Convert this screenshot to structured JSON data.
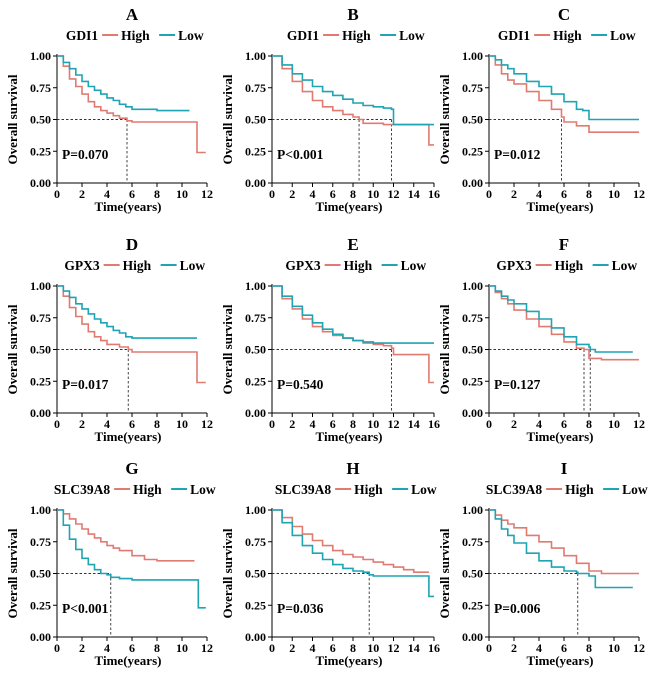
{
  "colors": {
    "high": "#E07B72",
    "low": "#1FA4B4",
    "axis": "#000000",
    "reference": "#333333"
  },
  "axis_text": {
    "xlabel": "Time(years)",
    "ylabel": "Overall survival"
  },
  "legend_text": {
    "high": "High",
    "low": "Low"
  },
  "chart_data": [
    {
      "panel": "A",
      "type": "line",
      "title": "GDI1",
      "p_value": "P=0.070",
      "xlim": [
        0,
        12
      ],
      "xticks": [
        0,
        2,
        4,
        6,
        8,
        10,
        12
      ],
      "ylim": [
        0,
        1
      ],
      "yticks": [
        "0.00",
        "0.25",
        "0.50",
        "0.75",
        "1.00"
      ],
      "median_lines": [
        5.6
      ],
      "median_end": 5.6,
      "series": [
        {
          "name": "High",
          "x": [
            0,
            0.5,
            1,
            1.5,
            2,
            2.5,
            3,
            3.5,
            4,
            4.5,
            5,
            5.6,
            6,
            8,
            10,
            11,
            11.2,
            11.9
          ],
          "y": [
            1.0,
            0.92,
            0.82,
            0.76,
            0.7,
            0.64,
            0.6,
            0.57,
            0.55,
            0.53,
            0.51,
            0.49,
            0.48,
            0.48,
            0.48,
            0.48,
            0.24,
            0.24
          ]
        },
        {
          "name": "Low",
          "x": [
            0,
            0.5,
            1,
            1.5,
            2,
            2.5,
            3,
            3.5,
            4,
            4.5,
            5,
            5.5,
            6,
            7,
            8,
            9,
            10.6
          ],
          "y": [
            1.0,
            0.95,
            0.9,
            0.85,
            0.8,
            0.76,
            0.73,
            0.7,
            0.67,
            0.65,
            0.62,
            0.6,
            0.58,
            0.58,
            0.57,
            0.57,
            0.57
          ]
        }
      ]
    },
    {
      "panel": "B",
      "type": "line",
      "title": "GDI1",
      "p_value": "P<0.001",
      "xlim": [
        0,
        16
      ],
      "xticks": [
        0,
        2,
        4,
        6,
        8,
        10,
        12,
        14,
        16
      ],
      "ylim": [
        0,
        1
      ],
      "yticks": [
        "0.00",
        "0.25",
        "0.50",
        "0.75",
        "1.00"
      ],
      "median_lines": [
        8.6,
        11.8
      ],
      "median_end": 11.8,
      "series": [
        {
          "name": "High",
          "x": [
            0,
            1,
            2,
            3,
            4,
            5,
            6,
            7,
            8,
            8.6,
            9,
            10,
            11,
            12,
            13,
            14,
            15.3,
            15.5,
            16
          ],
          "y": [
            1.0,
            0.9,
            0.8,
            0.72,
            0.65,
            0.6,
            0.57,
            0.54,
            0.52,
            0.5,
            0.47,
            0.47,
            0.46,
            0.46,
            0.46,
            0.46,
            0.46,
            0.3,
            0.3
          ]
        },
        {
          "name": "Low",
          "x": [
            0,
            1,
            2,
            3,
            4,
            5,
            6,
            7,
            8,
            9,
            10,
            11,
            11.8,
            12,
            13,
            14,
            15,
            16
          ],
          "y": [
            1.0,
            0.93,
            0.86,
            0.81,
            0.76,
            0.72,
            0.69,
            0.66,
            0.63,
            0.61,
            0.6,
            0.59,
            0.58,
            0.46,
            0.46,
            0.46,
            0.46,
            0.46
          ]
        }
      ]
    },
    {
      "panel": "C",
      "type": "line",
      "title": "GDI1",
      "p_value": "P=0.012",
      "xlim": [
        0,
        12
      ],
      "xticks": [
        0,
        2,
        4,
        6,
        8,
        10,
        12
      ],
      "ylim": [
        0,
        1
      ],
      "yticks": [
        "0.00",
        "0.25",
        "0.50",
        "0.75",
        "1.00"
      ],
      "median_lines": [
        5.8
      ],
      "median_end": 5.8,
      "series": [
        {
          "name": "High",
          "x": [
            0,
            0.5,
            1,
            1.5,
            2,
            3,
            4,
            5,
            5.8,
            6,
            7,
            8,
            9,
            10,
            11,
            12
          ],
          "y": [
            1.0,
            0.93,
            0.86,
            0.81,
            0.78,
            0.72,
            0.65,
            0.58,
            0.52,
            0.48,
            0.45,
            0.4,
            0.4,
            0.4,
            0.4,
            0.4
          ]
        },
        {
          "name": "Low",
          "x": [
            0,
            0.5,
            1,
            1.5,
            2,
            3,
            4,
            5,
            6,
            7,
            7.5,
            8,
            9,
            10,
            11,
            12
          ],
          "y": [
            1.0,
            0.97,
            0.93,
            0.9,
            0.86,
            0.8,
            0.76,
            0.7,
            0.64,
            0.58,
            0.57,
            0.5,
            0.5,
            0.5,
            0.5,
            0.5
          ]
        }
      ]
    },
    {
      "panel": "D",
      "type": "line",
      "title": "GPX3",
      "p_value": "P=0.017",
      "xlim": [
        0,
        12
      ],
      "xticks": [
        0,
        2,
        4,
        6,
        8,
        10,
        12
      ],
      "ylim": [
        0,
        1
      ],
      "yticks": [
        "0.00",
        "0.25",
        "0.50",
        "0.75",
        "1.00"
      ],
      "median_lines": [
        5.7
      ],
      "median_end": 5.7,
      "series": [
        {
          "name": "High",
          "x": [
            0,
            0.5,
            1,
            1.5,
            2,
            2.5,
            3,
            3.5,
            4,
            5,
            5.7,
            6,
            8,
            10,
            11,
            11.2,
            11.9
          ],
          "y": [
            1.0,
            0.92,
            0.83,
            0.76,
            0.7,
            0.64,
            0.6,
            0.57,
            0.54,
            0.52,
            0.5,
            0.48,
            0.48,
            0.48,
            0.48,
            0.24,
            0.24
          ]
        },
        {
          "name": "Low",
          "x": [
            0,
            0.5,
            1,
            1.5,
            2,
            2.5,
            3,
            3.5,
            4,
            4.5,
            5,
            5.5,
            6,
            8,
            10,
            11.2
          ],
          "y": [
            1.0,
            0.96,
            0.91,
            0.86,
            0.82,
            0.78,
            0.74,
            0.71,
            0.68,
            0.65,
            0.63,
            0.6,
            0.59,
            0.59,
            0.59,
            0.59
          ]
        }
      ]
    },
    {
      "panel": "E",
      "type": "line",
      "title": "GPX3",
      "p_value": "P=0.540",
      "xlim": [
        0,
        16
      ],
      "xticks": [
        0,
        2,
        4,
        6,
        8,
        10,
        12,
        14,
        16
      ],
      "ylim": [
        0,
        1
      ],
      "yticks": [
        "0.00",
        "0.25",
        "0.50",
        "0.75",
        "1.00"
      ],
      "median_lines": [
        11.8
      ],
      "median_end": 11.8,
      "series": [
        {
          "name": "High",
          "x": [
            0,
            1,
            2,
            3,
            4,
            5,
            6,
            7,
            8,
            9,
            10,
            11,
            11.8,
            12,
            14,
            15.3,
            15.5,
            16
          ],
          "y": [
            1.0,
            0.9,
            0.82,
            0.74,
            0.68,
            0.64,
            0.61,
            0.59,
            0.57,
            0.55,
            0.54,
            0.53,
            0.51,
            0.46,
            0.46,
            0.46,
            0.24,
            0.24
          ]
        },
        {
          "name": "Low",
          "x": [
            0,
            1,
            2,
            3,
            4,
            5,
            6,
            7,
            8,
            9,
            10,
            12,
            14,
            16
          ],
          "y": [
            1.0,
            0.92,
            0.84,
            0.77,
            0.71,
            0.66,
            0.62,
            0.59,
            0.57,
            0.56,
            0.55,
            0.55,
            0.55,
            0.55
          ]
        }
      ]
    },
    {
      "panel": "F",
      "type": "line",
      "title": "GPX3",
      "p_value": "P=0.127",
      "xlim": [
        0,
        12
      ],
      "xticks": [
        0,
        2,
        4,
        6,
        8,
        10,
        12
      ],
      "ylim": [
        0,
        1
      ],
      "yticks": [
        "0.00",
        "0.25",
        "0.50",
        "0.75",
        "1.00"
      ],
      "median_lines": [
        7.6,
        8.1
      ],
      "median_end": 8.1,
      "series": [
        {
          "name": "High",
          "x": [
            0,
            0.5,
            1,
            1.5,
            2,
            3,
            4,
            5,
            6,
            7,
            7.6,
            8,
            9,
            10,
            11,
            12
          ],
          "y": [
            1.0,
            0.95,
            0.9,
            0.86,
            0.81,
            0.74,
            0.68,
            0.62,
            0.56,
            0.51,
            0.5,
            0.43,
            0.42,
            0.42,
            0.42,
            0.42
          ]
        },
        {
          "name": "Low",
          "x": [
            0,
            0.5,
            1,
            1.5,
            2,
            3,
            4,
            5,
            6,
            7,
            8,
            8.1,
            8.5,
            10,
            11.5
          ],
          "y": [
            1.0,
            0.96,
            0.92,
            0.89,
            0.86,
            0.8,
            0.74,
            0.67,
            0.6,
            0.54,
            0.52,
            0.5,
            0.48,
            0.48,
            0.48
          ]
        }
      ]
    },
    {
      "panel": "G",
      "type": "line",
      "title": "SLC39A8",
      "p_value": "P<0.001",
      "xlim": [
        0,
        12
      ],
      "xticks": [
        0,
        2,
        4,
        6,
        8,
        10,
        12
      ],
      "ylim": [
        0,
        1
      ],
      "yticks": [
        "0.00",
        "0.25",
        "0.50",
        "0.75",
        "1.00"
      ],
      "median_lines": [
        4.3
      ],
      "median_end": 4.3,
      "series": [
        {
          "name": "High",
          "x": [
            0,
            0.5,
            1,
            1.5,
            2,
            2.5,
            3,
            3.5,
            4,
            4.5,
            5,
            6,
            7,
            8,
            9,
            10,
            11
          ],
          "y": [
            1.0,
            0.97,
            0.93,
            0.89,
            0.85,
            0.81,
            0.78,
            0.75,
            0.72,
            0.7,
            0.68,
            0.64,
            0.61,
            0.6,
            0.6,
            0.6,
            0.6
          ]
        },
        {
          "name": "Low",
          "x": [
            0,
            0.5,
            1,
            1.5,
            2,
            2.5,
            3,
            3.5,
            4,
            4.3,
            5,
            6,
            8,
            10,
            11.2,
            11.3,
            11.9
          ],
          "y": [
            1.0,
            0.88,
            0.77,
            0.69,
            0.62,
            0.57,
            0.53,
            0.5,
            0.49,
            0.47,
            0.46,
            0.45,
            0.45,
            0.45,
            0.45,
            0.23,
            0.23
          ]
        }
      ]
    },
    {
      "panel": "H",
      "type": "line",
      "title": "SLC39A8",
      "p_value": "P=0.036",
      "xlim": [
        0,
        16
      ],
      "xticks": [
        0,
        2,
        4,
        6,
        8,
        10,
        12,
        14,
        16
      ],
      "ylim": [
        0,
        1
      ],
      "yticks": [
        "0.00",
        "0.25",
        "0.50",
        "0.75",
        "1.00"
      ],
      "median_lines": [
        9.6
      ],
      "median_end": 9.6,
      "series": [
        {
          "name": "High",
          "x": [
            0,
            1,
            2,
            3,
            4,
            5,
            6,
            7,
            8,
            9,
            10,
            11,
            12,
            13,
            14,
            15,
            15.5
          ],
          "y": [
            1.0,
            0.94,
            0.87,
            0.81,
            0.76,
            0.72,
            0.68,
            0.65,
            0.63,
            0.61,
            0.59,
            0.57,
            0.55,
            0.53,
            0.51,
            0.51,
            0.51
          ]
        },
        {
          "name": "Low",
          "x": [
            0,
            1,
            2,
            3,
            4,
            5,
            6,
            7,
            8,
            9,
            9.6,
            10,
            12,
            14,
            15.3,
            15.5,
            16
          ],
          "y": [
            1.0,
            0.9,
            0.8,
            0.72,
            0.66,
            0.61,
            0.57,
            0.54,
            0.52,
            0.51,
            0.49,
            0.48,
            0.48,
            0.48,
            0.48,
            0.32,
            0.32
          ]
        }
      ]
    },
    {
      "panel": "I",
      "type": "line",
      "title": "SLC39A8",
      "p_value": "P=0.006",
      "xlim": [
        0,
        12
      ],
      "xticks": [
        0,
        2,
        4,
        6,
        8,
        10,
        12
      ],
      "ylim": [
        0,
        1
      ],
      "yticks": [
        "0.00",
        "0.25",
        "0.50",
        "0.75",
        "1.00"
      ],
      "median_lines": [
        7.1
      ],
      "median_end": 7.1,
      "series": [
        {
          "name": "High",
          "x": [
            0,
            0.5,
            1,
            1.5,
            2,
            3,
            4,
            5,
            6,
            7,
            8,
            9,
            10,
            11,
            12
          ],
          "y": [
            1.0,
            0.96,
            0.92,
            0.89,
            0.86,
            0.8,
            0.75,
            0.7,
            0.64,
            0.58,
            0.52,
            0.5,
            0.5,
            0.5,
            0.5
          ]
        },
        {
          "name": "Low",
          "x": [
            0,
            0.5,
            1,
            1.5,
            2,
            3,
            4,
            5,
            6,
            7,
            7.1,
            8,
            8.5,
            10,
            11.5
          ],
          "y": [
            1.0,
            0.93,
            0.85,
            0.8,
            0.74,
            0.66,
            0.6,
            0.55,
            0.52,
            0.51,
            0.5,
            0.48,
            0.39,
            0.39,
            0.39
          ]
        }
      ]
    }
  ]
}
